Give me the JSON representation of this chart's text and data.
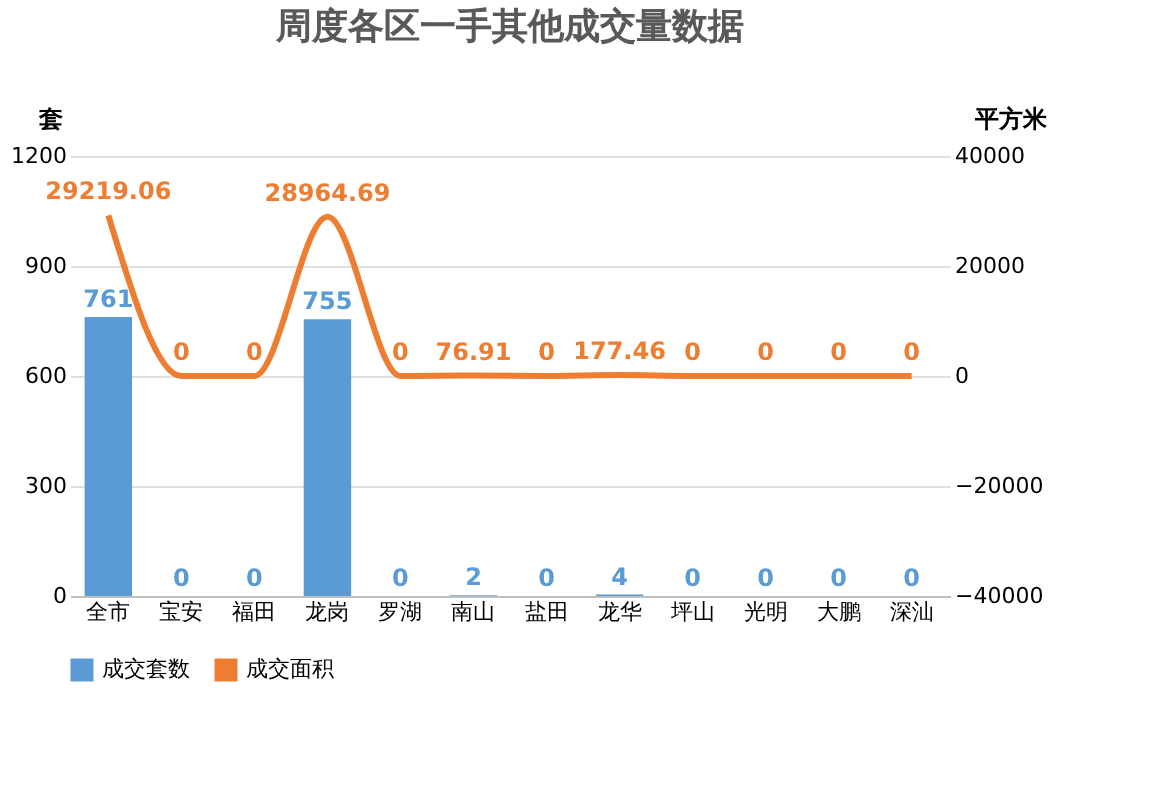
{
  "chart_data": {
    "type": "bar",
    "title": "周度各区一手其他成交量数据",
    "categories": [
      "全市",
      "宝安",
      "福田",
      "龙岗",
      "罗湖",
      "南山",
      "盐田",
      "龙华",
      "坪山",
      "光明",
      "大鹏",
      "深汕"
    ],
    "series": [
      {
        "name": "成交套数",
        "color": "#5b9bd5",
        "values": [
          761,
          0,
          0,
          755,
          0,
          2,
          0,
          4,
          0,
          0,
          0,
          0
        ]
      },
      {
        "name": "成交面积",
        "type": "line",
        "axis": "y2",
        "color": "#ed7d31",
        "values": [
          29219.06,
          0,
          0,
          28964.69,
          0,
          76.91,
          0,
          177.46,
          0,
          0,
          0,
          0
        ]
      }
    ],
    "ylabel": "套",
    "y2label": "平方米",
    "ylim": [
      0,
      1200
    ],
    "yticks": [
      0,
      300,
      600,
      900,
      1200
    ],
    "y2lim": [
      -40000,
      40000
    ],
    "y2ticks": [
      -40000,
      -20000,
      0,
      20000,
      40000
    ],
    "grid": "y",
    "legend": "bottom",
    "data_labels": true,
    "marker": "none",
    "line_style": "solid"
  }
}
